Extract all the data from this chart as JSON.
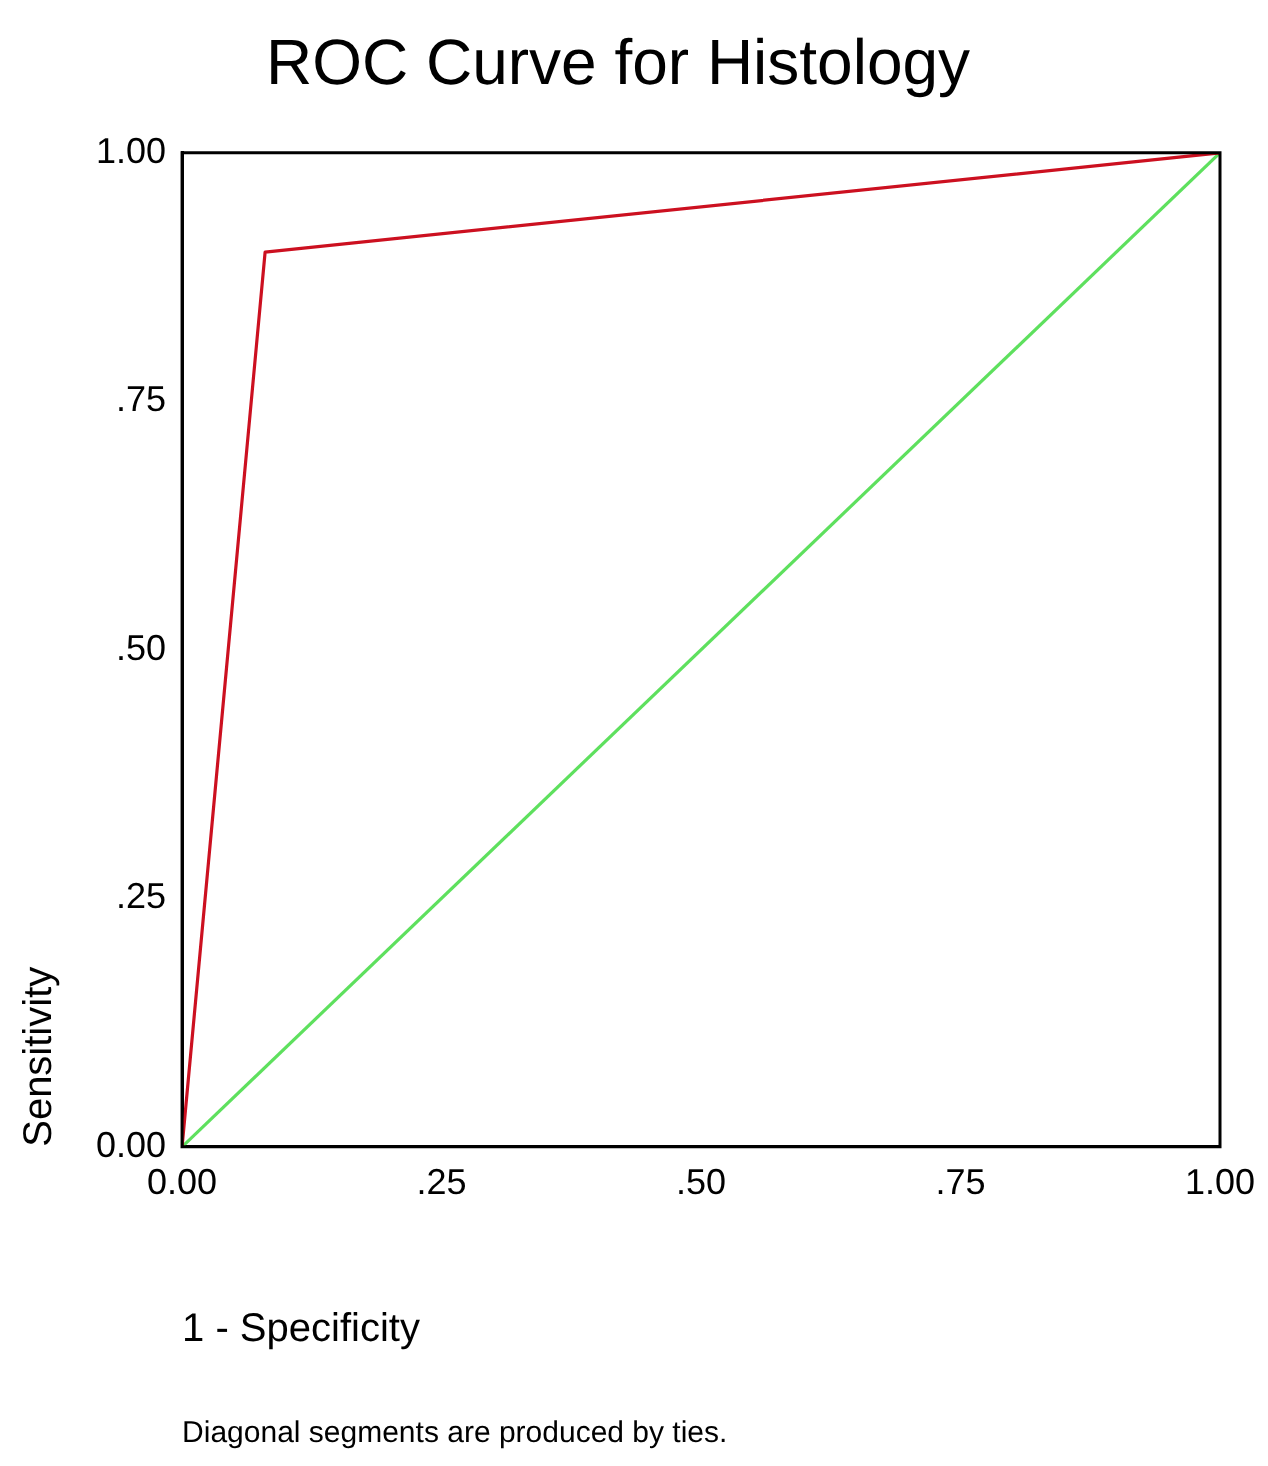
{
  "chart_data": {
    "type": "line",
    "title": "ROC Curve for Histology",
    "xlabel": "1 - Specificity",
    "ylabel": "Sensitivity",
    "annotations": [
      "Diagonal segments are produced by ties."
    ],
    "series": [
      {
        "color": "#cc1020",
        "x": [
          0,
          0.08,
          1
        ],
        "values": [
          0,
          0.9,
          1
        ]
      },
      {
        "color": "#5ee05e",
        "x": [
          0,
          1
        ],
        "values": [
          0,
          1
        ]
      }
    ],
    "xlim": [
      0,
      1
    ],
    "ylim": [
      0,
      1
    ],
    "xticks": [
      {
        "value": 0,
        "label": "0.00"
      },
      {
        "value": 0.25,
        "label": ".25"
      },
      {
        "value": 0.5,
        "label": ".50"
      },
      {
        "value": 0.75,
        "label": ".75"
      },
      {
        "value": 1,
        "label": "1.00"
      }
    ],
    "yticks": [
      {
        "value": 0,
        "label": "0.00"
      },
      {
        "value": 0.25,
        "label": ".25"
      },
      {
        "value": 0.5,
        "label": ".50"
      },
      {
        "value": 0.75,
        "label": ".75"
      },
      {
        "value": 1,
        "label": "1.00"
      }
    ],
    "grid": false,
    "legend": false,
    "marker": "none",
    "line_style": "solid"
  }
}
